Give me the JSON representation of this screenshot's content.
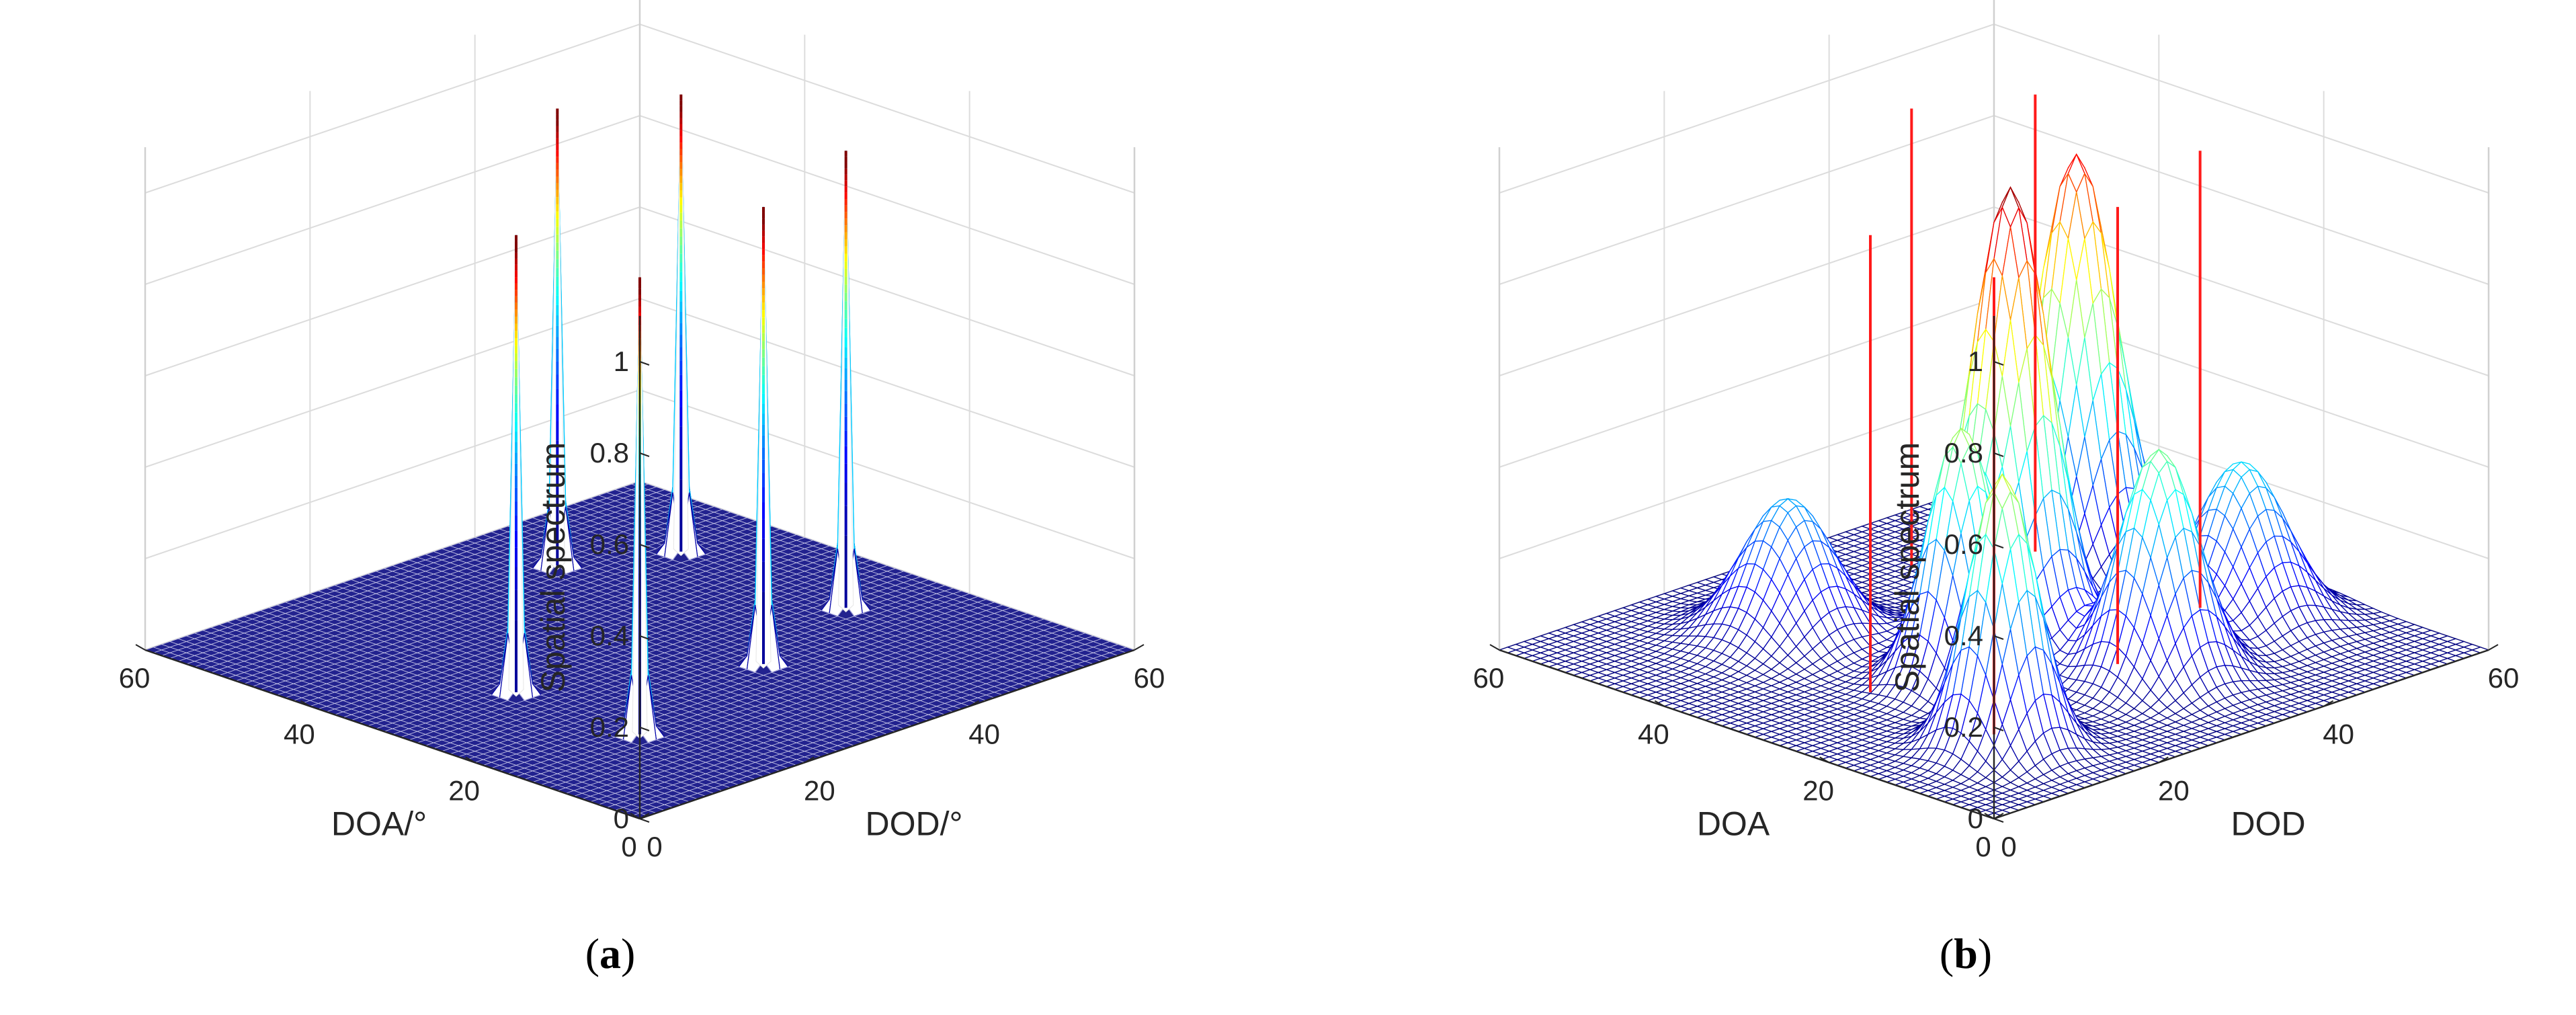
{
  "chart_data": [
    {
      "type": "surface3d",
      "panel": "a",
      "caption": "a",
      "zlabel": "Spatial spectrum",
      "xlabel": "DOA/°",
      "ylabel": "DOD/°",
      "x_range": [
        0,
        60
      ],
      "y_range": [
        0,
        60
      ],
      "z_range": [
        0,
        1
      ],
      "x_ticks": [
        "0",
        "20",
        "40",
        "60"
      ],
      "y_ticks": [
        "0",
        "20",
        "40",
        "60"
      ],
      "z_ticks": [
        "0",
        "0.2",
        "0.4",
        "0.6",
        "0.8",
        "1"
      ],
      "grid": true,
      "peaks": [
        {
          "doa": 50,
          "dod": 40,
          "height": 1.0,
          "width": 0.5
        },
        {
          "doa": 30,
          "dod": 15,
          "height": 1.0,
          "width": 0.5
        },
        {
          "doa": 45,
          "dod": 50,
          "height": 1.0,
          "width": 0.5
        },
        {
          "doa": 20,
          "dod": 35,
          "height": 1.0,
          "width": 0.5
        },
        {
          "doa": 15,
          "dod": 15,
          "height": 1.0,
          "width": 0.5
        },
        {
          "doa": 25,
          "dod": 50,
          "height": 1.0,
          "width": 0.5
        }
      ]
    },
    {
      "type": "surface3d",
      "panel": "b",
      "caption": "b",
      "zlabel": "Spatial spectrum",
      "xlabel": "DOA",
      "ylabel": "DOD",
      "x_range": [
        0,
        60
      ],
      "y_range": [
        0,
        60
      ],
      "z_range": [
        0,
        1
      ],
      "x_ticks": [
        "0",
        "20",
        "40",
        "60"
      ],
      "y_ticks": [
        "0",
        "20",
        "40",
        "60"
      ],
      "z_ticks": [
        "0",
        "0.2",
        "0.4",
        "0.6",
        "0.8",
        "1"
      ],
      "grid": true,
      "true_lines": [
        {
          "doa": 50,
          "dod": 40,
          "height": 1.0
        },
        {
          "doa": 30,
          "dod": 15,
          "height": 1.0
        },
        {
          "doa": 45,
          "dod": 50,
          "height": 1.0
        },
        {
          "doa": 20,
          "dod": 35,
          "height": 1.0
        },
        {
          "doa": 15,
          "dod": 15,
          "height": 1.0
        },
        {
          "doa": 25,
          "dod": 50,
          "height": 1.0
        }
      ],
      "peaks": [
        {
          "doa": 40,
          "dod": 50,
          "height": 0.9,
          "width": 3.5
        },
        {
          "doa": 30,
          "dod": 32,
          "height": 1.0,
          "width": 3.5
        },
        {
          "doa": 45,
          "dod": 20,
          "height": 0.3,
          "width": 4.0
        },
        {
          "doa": 26,
          "dod": 22,
          "height": 0.55,
          "width": 3.0
        },
        {
          "doa": 15,
          "dod": 35,
          "height": 0.5,
          "width": 3.5
        },
        {
          "doa": 12,
          "dod": 13,
          "height": 0.6,
          "width": 3.0
        },
        {
          "doa": 20,
          "dod": 50,
          "height": 0.35,
          "width": 4.0
        }
      ]
    }
  ]
}
